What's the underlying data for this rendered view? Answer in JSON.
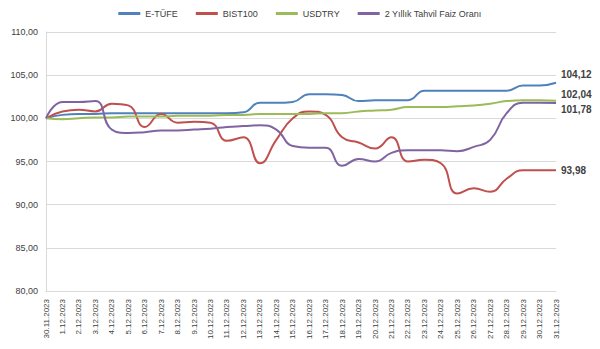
{
  "chart_data": {
    "type": "line",
    "categories": [
      "30.11.2023",
      "1.12.2023",
      "2.12.2023",
      "3.12.2023",
      "4.12.2023",
      "5.12.2023",
      "6.12.2023",
      "7.12.2023",
      "8.12.2023",
      "9.12.2023",
      "10.12.2023",
      "11.12.2023",
      "12.12.2023",
      "13.12.2023",
      "14.12.2023",
      "15.12.2023",
      "16.12.2023",
      "17.12.2023",
      "18.12.2023",
      "19.12.2023",
      "20.12.2023",
      "21.12.2023",
      "22.12.2023",
      "23.12.2023",
      "24.12.2023",
      "25.12.2023",
      "26.12.2023",
      "27.12.2023",
      "28.12.2023",
      "29.12.2023",
      "30.12.2023",
      "31.12.2023"
    ],
    "series": [
      {
        "name": "E-TÜFE",
        "color": "#4f81bd",
        "values": [
          100,
          100.4,
          100.5,
          100.5,
          100.6,
          100.6,
          100.6,
          100.6,
          100.6,
          100.6,
          100.6,
          100.6,
          100.7,
          101.8,
          101.8,
          101.9,
          102.8,
          102.8,
          102.7,
          102.0,
          102.1,
          102.1,
          102.1,
          103.2,
          103.2,
          103.2,
          103.2,
          103.2,
          103.2,
          103.8,
          103.8,
          104.12
        ],
        "value_labels": [
          null,
          null,
          null,
          null,
          null,
          null,
          null,
          null,
          null,
          null,
          null,
          null,
          null,
          null,
          null,
          null,
          null,
          null,
          null,
          null,
          null,
          null,
          null,
          null,
          null,
          null,
          null,
          null,
          null,
          null,
          null,
          "104,12"
        ]
      },
      {
        "name": "BIST100",
        "color": "#c0504d",
        "values": [
          100,
          100.8,
          101.0,
          100.8,
          101.7,
          101.5,
          99.0,
          100.5,
          99.5,
          99.6,
          99.5,
          97.4,
          97.8,
          94.8,
          97.5,
          100.0,
          100.8,
          100.4,
          97.8,
          97.2,
          96.5,
          97.8,
          95.0,
          95.2,
          94.8,
          91.3,
          91.9,
          91.5,
          93.0,
          94.0,
          94.0,
          93.98
        ],
        "value_labels": [
          null,
          null,
          null,
          null,
          null,
          null,
          null,
          null,
          null,
          null,
          null,
          null,
          null,
          null,
          null,
          null,
          null,
          null,
          null,
          null,
          null,
          null,
          null,
          null,
          null,
          null,
          null,
          null,
          null,
          null,
          null,
          "93,98"
        ]
      },
      {
        "name": "USDTRY",
        "color": "#9bbb59",
        "values": [
          100,
          99.9,
          100.0,
          100.1,
          100.1,
          100.2,
          100.2,
          100.2,
          100.3,
          100.3,
          100.3,
          100.4,
          100.4,
          100.5,
          100.5,
          100.5,
          100.5,
          100.6,
          100.6,
          100.8,
          100.9,
          101.0,
          101.3,
          101.3,
          101.3,
          101.4,
          101.5,
          101.7,
          102.0,
          102.1,
          102.1,
          102.04
        ],
        "value_labels": [
          null,
          null,
          null,
          null,
          null,
          null,
          null,
          null,
          null,
          null,
          null,
          null,
          null,
          null,
          null,
          null,
          null,
          null,
          null,
          null,
          null,
          null,
          null,
          null,
          null,
          null,
          null,
          null,
          null,
          null,
          null,
          "102,04"
        ]
      },
      {
        "name": "2 Yıllık Tahvil Faiz Oranı",
        "color": "#8064a2",
        "values": [
          100,
          101.9,
          101.9,
          102.0,
          98.7,
          98.3,
          98.4,
          98.6,
          98.6,
          98.7,
          98.8,
          99.0,
          99.1,
          99.2,
          98.7,
          96.8,
          96.6,
          96.6,
          94.5,
          95.3,
          95.0,
          96.0,
          96.3,
          96.3,
          96.3,
          96.2,
          96.7,
          97.5,
          100.6,
          101.8,
          101.8,
          101.78
        ],
        "value_labels": [
          null,
          null,
          null,
          null,
          null,
          null,
          null,
          null,
          null,
          null,
          null,
          null,
          null,
          null,
          null,
          null,
          null,
          null,
          null,
          null,
          null,
          null,
          null,
          null,
          null,
          null,
          null,
          null,
          null,
          null,
          null,
          "101,78"
        ]
      }
    ],
    "ylim": [
      80,
      110
    ],
    "yticks": [
      {
        "value": 80,
        "label": "80,00"
      },
      {
        "value": 85,
        "label": "85,00"
      },
      {
        "value": 90,
        "label": "90,00"
      },
      {
        "value": 95,
        "label": "95,00"
      },
      {
        "value": 100,
        "label": "100,00"
      },
      {
        "value": 105,
        "label": "105,00"
      },
      {
        "value": 110,
        "label": "110,00"
      }
    ],
    "grid": true,
    "legend": "top",
    "data_labels": true
  }
}
